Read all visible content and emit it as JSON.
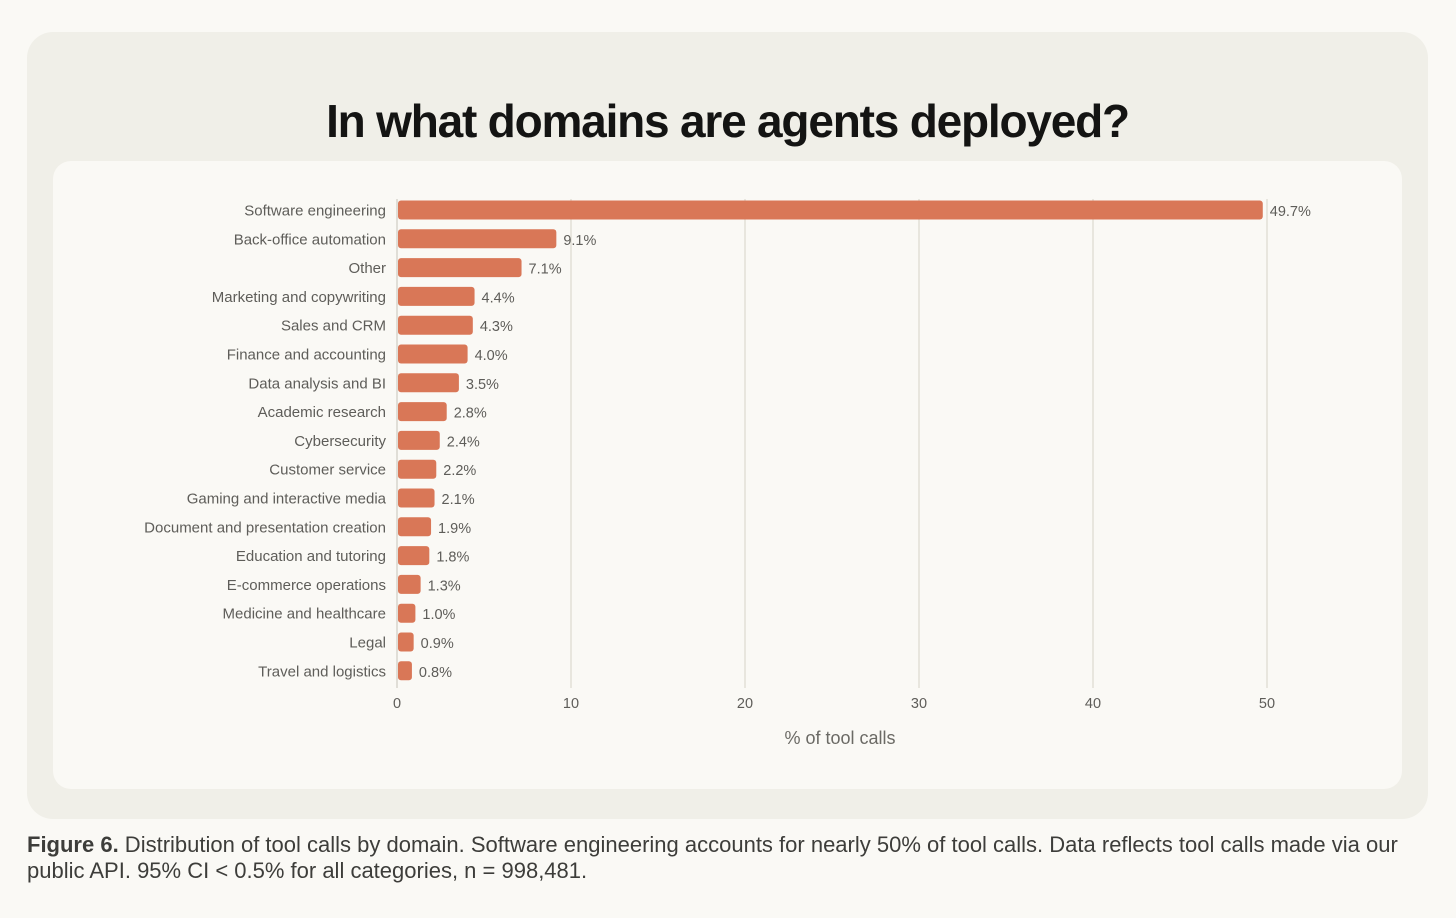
{
  "figure": {
    "caption_lead": "Figure 6.",
    "caption_text": " Distribution of tool calls by domain. Software engineering accounts for nearly 50% of tool calls. Data reflects tool calls made via our public API. 95% CI < 0.5% for all categories, n = 998,481."
  },
  "colors": {
    "bar": "#d97757",
    "grid": "#e2e0d6",
    "label": "#5e5d59",
    "outer_card": "#f0efe8",
    "inner_card": "#faf9f5"
  },
  "chart_data": {
    "type": "bar",
    "orientation": "horizontal",
    "title": "In what domains are agents deployed?",
    "xlabel": "% of tool calls",
    "ylabel": "",
    "xlim": [
      0,
      50
    ],
    "xticks": [
      0,
      10,
      20,
      30,
      40,
      50
    ],
    "grid": true,
    "categories": [
      "Software engineering",
      "Back-office automation",
      "Other",
      "Marketing and copywriting",
      "Sales and CRM",
      "Finance and accounting",
      "Data analysis and BI",
      "Academic research",
      "Cybersecurity",
      "Customer service",
      "Gaming and interactive media",
      "Document and presentation creation",
      "Education and tutoring",
      "E-commerce operations",
      "Medicine and healthcare",
      "Legal",
      "Travel and logistics"
    ],
    "values": [
      49.7,
      9.1,
      7.1,
      4.4,
      4.3,
      4.0,
      3.5,
      2.8,
      2.4,
      2.2,
      2.1,
      1.9,
      1.8,
      1.3,
      1.0,
      0.9,
      0.8
    ],
    "value_labels": [
      "49.7%",
      "9.1%",
      "7.1%",
      "4.4%",
      "4.3%",
      "4.0%",
      "3.5%",
      "2.8%",
      "2.4%",
      "2.2%",
      "2.1%",
      "1.9%",
      "1.8%",
      "1.3%",
      "1.0%",
      "0.9%",
      "0.8%"
    ]
  }
}
